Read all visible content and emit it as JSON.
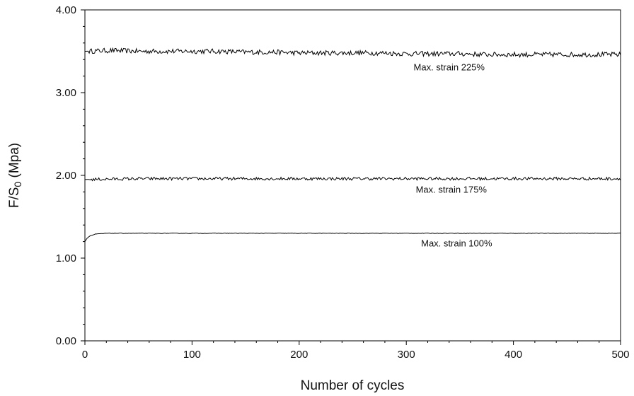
{
  "chart_data": {
    "type": "line",
    "xlabel": "Number of cycles",
    "ylabel_main": "F/S",
    "ylabel_sub": "0",
    "ylabel_unit": " (Mpa)",
    "xlim": [
      0,
      500
    ],
    "ylim": [
      0,
      4
    ],
    "x_ticks": [
      "0",
      "100",
      "200",
      "300",
      "400",
      "500"
    ],
    "y_ticks": [
      "0.00",
      "1.00",
      "2.00",
      "3.00",
      "4.00"
    ],
    "grid": false,
    "line_color": "#000000",
    "series": [
      {
        "name": "Max. strain 225%",
        "x": [
          0,
          25,
          50,
          75,
          100,
          125,
          150,
          175,
          200,
          225,
          250,
          275,
          300,
          325,
          350,
          375,
          400,
          425,
          450,
          475,
          500
        ],
        "values": [
          3.5,
          3.51,
          3.5,
          3.5,
          3.5,
          3.5,
          3.49,
          3.49,
          3.48,
          3.48,
          3.48,
          3.48,
          3.47,
          3.47,
          3.47,
          3.46,
          3.46,
          3.46,
          3.46,
          3.46,
          3.46
        ],
        "noise": 0.03
      },
      {
        "name": "Max. strain 175%",
        "x": [
          0,
          50,
          100,
          150,
          200,
          250,
          300,
          350,
          400,
          450,
          500
        ],
        "values": [
          1.95,
          1.96,
          1.96,
          1.96,
          1.96,
          1.96,
          1.96,
          1.96,
          1.96,
          1.96,
          1.96
        ],
        "noise": 0.018
      },
      {
        "name": "Max. strain 100%",
        "x": [
          0,
          2,
          5,
          10,
          15,
          20,
          30,
          50,
          100,
          200,
          300,
          400,
          500
        ],
        "values": [
          1.2,
          1.24,
          1.27,
          1.29,
          1.295,
          1.3,
          1.3,
          1.3,
          1.3,
          1.3,
          1.3,
          1.3,
          1.3
        ],
        "noise": 0.003
      }
    ],
    "annotations": [
      {
        "text": "Max. strain 225%",
        "x": 340,
        "y": 3.27
      },
      {
        "text": "Max. strain 175%",
        "x": 342,
        "y": 1.79
      },
      {
        "text": "Max. strain 100%",
        "x": 347,
        "y": 1.14
      }
    ]
  }
}
